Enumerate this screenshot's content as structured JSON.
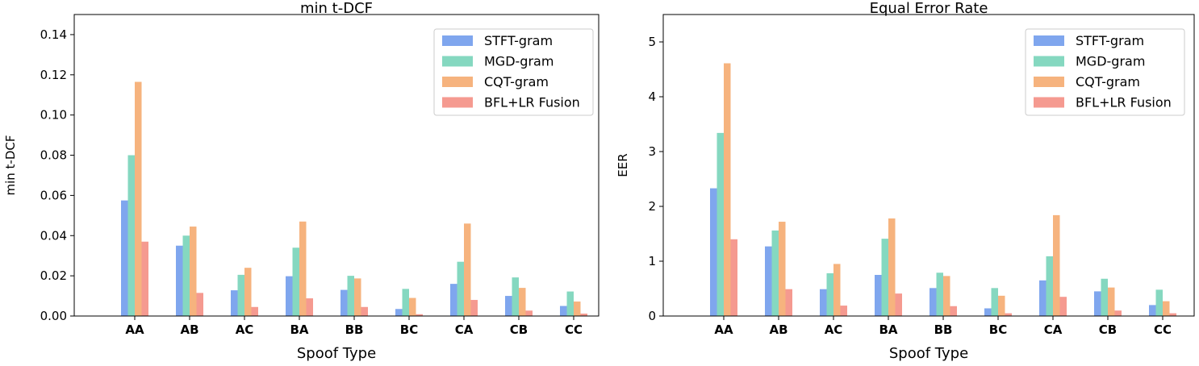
{
  "chart_data": [
    {
      "type": "bar",
      "title": "min t-DCF",
      "xlabel": "Spoof Type",
      "ylabel": "min t-DCF",
      "ylim": [
        0,
        0.15
      ],
      "yticks": [
        0.0,
        0.02,
        0.04,
        0.06,
        0.08,
        0.1,
        0.12,
        0.14
      ],
      "ytick_labels": [
        "0.00",
        "0.02",
        "0.04",
        "0.06",
        "0.08",
        "0.10",
        "0.12",
        "0.14"
      ],
      "legend_position": "top-right",
      "categories": [
        "AA",
        "AB",
        "AC",
        "BA",
        "BB",
        "BC",
        "CA",
        "CB",
        "CC"
      ],
      "series": [
        {
          "name": "STFT-gram",
          "color": "#7fa6ee",
          "values": [
            0.0575,
            0.035,
            0.0128,
            0.0198,
            0.013,
            0.0035,
            0.016,
            0.01,
            0.005
          ]
        },
        {
          "name": "MGD-gram",
          "color": "#85d8c0",
          "values": [
            0.08,
            0.04,
            0.0205,
            0.034,
            0.02,
            0.0135,
            0.027,
            0.0192,
            0.0122
          ]
        },
        {
          "name": "CQT-gram",
          "color": "#f6b37e",
          "values": [
            0.1165,
            0.0445,
            0.024,
            0.047,
            0.0187,
            0.009,
            0.046,
            0.014,
            0.0072
          ]
        },
        {
          "name": "BFL+LR Fusion",
          "color": "#f59a90",
          "values": [
            0.037,
            0.0115,
            0.0045,
            0.0088,
            0.0045,
            0.0009,
            0.008,
            0.0027,
            0.0012
          ]
        }
      ]
    },
    {
      "type": "bar",
      "title": "Equal Error Rate",
      "xlabel": "Spoof Type",
      "ylabel": "EER",
      "ylim": [
        0,
        5.5
      ],
      "yticks": [
        0,
        1,
        2,
        3,
        4,
        5
      ],
      "ytick_labels": [
        "0",
        "1",
        "2",
        "3",
        "4",
        "5"
      ],
      "legend_position": "top-right",
      "categories": [
        "AA",
        "AB",
        "AC",
        "BA",
        "BB",
        "BC",
        "CA",
        "CB",
        "CC"
      ],
      "series": [
        {
          "name": "STFT-gram",
          "color": "#7fa6ee",
          "values": [
            2.33,
            1.27,
            0.49,
            0.75,
            0.51,
            0.14,
            0.65,
            0.45,
            0.2
          ]
        },
        {
          "name": "MGD-gram",
          "color": "#85d8c0",
          "values": [
            3.34,
            1.56,
            0.78,
            1.41,
            0.79,
            0.51,
            1.09,
            0.68,
            0.48
          ]
        },
        {
          "name": "CQT-gram",
          "color": "#f6b37e",
          "values": [
            4.61,
            1.72,
            0.95,
            1.78,
            0.73,
            0.37,
            1.84,
            0.52,
            0.27
          ]
        },
        {
          "name": "BFL+LR Fusion",
          "color": "#f59a90",
          "values": [
            1.4,
            0.49,
            0.19,
            0.41,
            0.18,
            0.05,
            0.35,
            0.1,
            0.05
          ]
        }
      ]
    }
  ]
}
